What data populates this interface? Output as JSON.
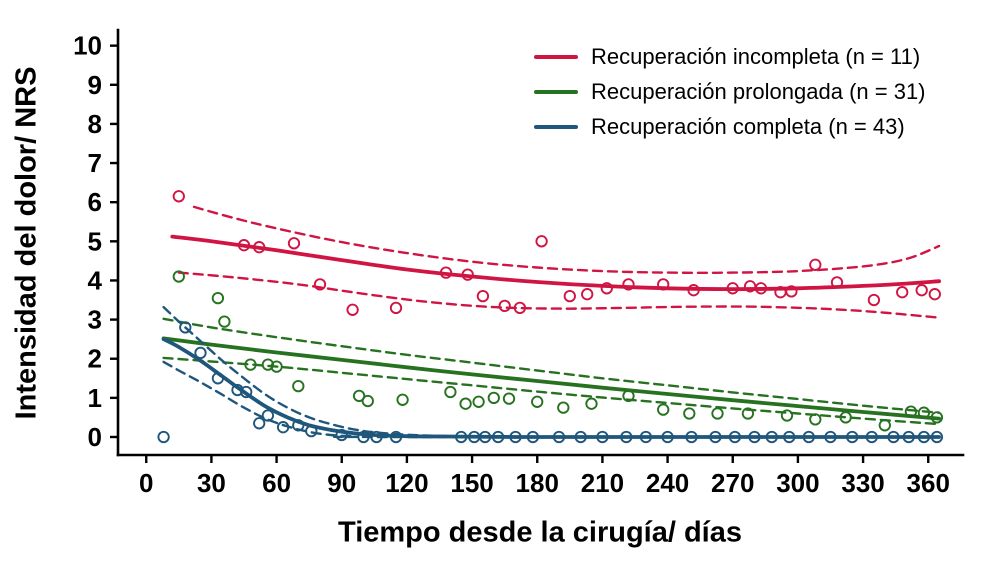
{
  "chart_data": {
    "type": "scatter",
    "title": "",
    "xlabel": "Tiempo desde la cirugía/ días",
    "ylabel": "Intensidad del dolor/ NRS",
    "xlim": [
      -13,
      376
    ],
    "ylim": [
      -0.46,
      10.4
    ],
    "xticks": [
      0,
      30,
      60,
      90,
      120,
      150,
      180,
      210,
      240,
      270,
      300,
      330,
      360
    ],
    "yticks": [
      0,
      1,
      2,
      3,
      4,
      5,
      6,
      7,
      8,
      9,
      10
    ],
    "grid": false,
    "legend": {
      "position": "top-right",
      "entries": [
        {
          "label": "Recuperación incompleta (n = 11)",
          "color": "#d01543"
        },
        {
          "label": "Recuperación prolongada (n = 31)",
          "color": "#277221"
        },
        {
          "label": "Recuperación completa (n = 43)",
          "color": "#1f567b"
        }
      ]
    },
    "series": [
      {
        "id": "incompleta-ci-upper",
        "group": "Recuperación incompleta",
        "role": "ci-upper",
        "style": "dashed",
        "color": "#d01543",
        "points": [
          [
            22,
            5.88
          ],
          [
            40,
            5.6
          ],
          [
            60,
            5.33
          ],
          [
            90,
            4.98
          ],
          [
            120,
            4.7
          ],
          [
            150,
            4.48
          ],
          [
            180,
            4.33
          ],
          [
            210,
            4.24
          ],
          [
            240,
            4.2
          ],
          [
            270,
            4.2
          ],
          [
            300,
            4.24
          ],
          [
            330,
            4.36
          ],
          [
            350,
            4.55
          ],
          [
            365,
            4.88
          ]
        ]
      },
      {
        "id": "incompleta-ci-lower",
        "group": "Recuperación incompleta",
        "role": "ci-lower",
        "style": "dashed",
        "color": "#d01543",
        "points": [
          [
            15,
            4.2
          ],
          [
            40,
            4.08
          ],
          [
            70,
            3.9
          ],
          [
            100,
            3.66
          ],
          [
            130,
            3.45
          ],
          [
            160,
            3.32
          ],
          [
            190,
            3.28
          ],
          [
            220,
            3.3
          ],
          [
            250,
            3.33
          ],
          [
            280,
            3.33
          ],
          [
            310,
            3.28
          ],
          [
            335,
            3.2
          ],
          [
            365,
            3.05
          ]
        ]
      },
      {
        "id": "incompleta-fit",
        "group": "Recuperación incompleta",
        "role": "fit",
        "style": "line",
        "color": "#d01543",
        "points": [
          [
            12,
            5.12
          ],
          [
            30,
            5.0
          ],
          [
            60,
            4.77
          ],
          [
            90,
            4.52
          ],
          [
            120,
            4.28
          ],
          [
            150,
            4.1
          ],
          [
            180,
            3.96
          ],
          [
            210,
            3.86
          ],
          [
            240,
            3.8
          ],
          [
            270,
            3.78
          ],
          [
            300,
            3.8
          ],
          [
            330,
            3.86
          ],
          [
            350,
            3.92
          ],
          [
            365,
            3.98
          ]
        ]
      },
      {
        "id": "prolongada-ci-upper",
        "group": "Recuperación prolongada",
        "role": "ci-upper",
        "style": "dashed",
        "color": "#277221",
        "points": [
          [
            8,
            3.02
          ],
          [
            30,
            2.8
          ],
          [
            60,
            2.55
          ],
          [
            90,
            2.32
          ],
          [
            120,
            2.1
          ],
          [
            150,
            1.9
          ],
          [
            180,
            1.7
          ],
          [
            210,
            1.5
          ],
          [
            240,
            1.32
          ],
          [
            270,
            1.14
          ],
          [
            300,
            0.97
          ],
          [
            330,
            0.8
          ],
          [
            365,
            0.62
          ]
        ]
      },
      {
        "id": "prolongada-ci-lower",
        "group": "Recuperación prolongada",
        "role": "ci-lower",
        "style": "dashed",
        "color": "#277221",
        "points": [
          [
            8,
            2.02
          ],
          [
            30,
            1.93
          ],
          [
            60,
            1.8
          ],
          [
            90,
            1.64
          ],
          [
            120,
            1.48
          ],
          [
            150,
            1.32
          ],
          [
            180,
            1.16
          ],
          [
            210,
            1.01
          ],
          [
            240,
            0.87
          ],
          [
            270,
            0.73
          ],
          [
            300,
            0.6
          ],
          [
            330,
            0.47
          ],
          [
            365,
            0.33
          ]
        ]
      },
      {
        "id": "prolongada-fit",
        "group": "Recuperación prolongada",
        "role": "fit",
        "style": "line",
        "color": "#277221",
        "points": [
          [
            8,
            2.52
          ],
          [
            30,
            2.36
          ],
          [
            60,
            2.16
          ],
          [
            90,
            1.97
          ],
          [
            120,
            1.78
          ],
          [
            150,
            1.6
          ],
          [
            180,
            1.43
          ],
          [
            210,
            1.26
          ],
          [
            240,
            1.1
          ],
          [
            270,
            0.94
          ],
          [
            300,
            0.79
          ],
          [
            330,
            0.64
          ],
          [
            365,
            0.47
          ]
        ]
      },
      {
        "id": "completa-ci-upper",
        "group": "Recuperación completa",
        "role": "ci-upper",
        "style": "dashed",
        "color": "#1f567b",
        "points": [
          [
            8,
            3.32
          ],
          [
            15,
            2.95
          ],
          [
            25,
            2.45
          ],
          [
            35,
            1.95
          ],
          [
            45,
            1.5
          ],
          [
            55,
            1.08
          ],
          [
            65,
            0.75
          ],
          [
            75,
            0.5
          ],
          [
            85,
            0.33
          ],
          [
            95,
            0.2
          ],
          [
            105,
            0.12
          ],
          [
            120,
            0.06
          ],
          [
            140,
            0.02
          ],
          [
            170,
            0.01
          ],
          [
            200,
            0
          ],
          [
            365,
            0
          ]
        ]
      },
      {
        "id": "completa-ci-lower",
        "group": "Recuperación completa",
        "role": "ci-lower",
        "style": "dashed",
        "color": "#1f567b",
        "points": [
          [
            8,
            1.92
          ],
          [
            15,
            1.7
          ],
          [
            25,
            1.4
          ],
          [
            35,
            1.08
          ],
          [
            45,
            0.75
          ],
          [
            55,
            0.47
          ],
          [
            65,
            0.27
          ],
          [
            75,
            0.13
          ],
          [
            85,
            0.05
          ],
          [
            95,
            0.02
          ],
          [
            110,
            0
          ],
          [
            365,
            0
          ]
        ]
      },
      {
        "id": "completa-fit",
        "group": "Recuperación completa",
        "role": "fit",
        "style": "line",
        "color": "#1f567b",
        "points": [
          [
            8,
            2.5
          ],
          [
            15,
            2.3
          ],
          [
            25,
            1.95
          ],
          [
            35,
            1.55
          ],
          [
            45,
            1.15
          ],
          [
            55,
            0.78
          ],
          [
            65,
            0.5
          ],
          [
            75,
            0.3
          ],
          [
            85,
            0.18
          ],
          [
            95,
            0.1
          ],
          [
            105,
            0.05
          ],
          [
            120,
            0.02
          ],
          [
            145,
            0.01
          ],
          [
            170,
            0
          ],
          [
            220,
            0
          ],
          [
            280,
            0
          ],
          [
            365,
            0
          ]
        ]
      },
      {
        "id": "incompleta-points",
        "group": "Recuperación incompleta",
        "role": "observations",
        "style": "scatter",
        "color": "#d01543",
        "points": [
          [
            15,
            6.15
          ],
          [
            45,
            4.9
          ],
          [
            52,
            4.85
          ],
          [
            68,
            4.95
          ],
          [
            80,
            3.9
          ],
          [
            95,
            3.25
          ],
          [
            115,
            3.3
          ],
          [
            138,
            4.2
          ],
          [
            148,
            4.15
          ],
          [
            155,
            3.6
          ],
          [
            165,
            3.35
          ],
          [
            172,
            3.3
          ],
          [
            182,
            5.0
          ],
          [
            195,
            3.6
          ],
          [
            203,
            3.65
          ],
          [
            212,
            3.8
          ],
          [
            222,
            3.9
          ],
          [
            238,
            3.9
          ],
          [
            252,
            3.75
          ],
          [
            270,
            3.8
          ],
          [
            278,
            3.85
          ],
          [
            283,
            3.8
          ],
          [
            292,
            3.7
          ],
          [
            297,
            3.72
          ],
          [
            308,
            4.4
          ],
          [
            318,
            3.95
          ],
          [
            335,
            3.5
          ],
          [
            348,
            3.7
          ],
          [
            357,
            3.75
          ],
          [
            363,
            3.65
          ]
        ]
      },
      {
        "id": "prolongada-points",
        "group": "Recuperación prolongada",
        "role": "observations",
        "style": "scatter",
        "color": "#277221",
        "points": [
          [
            15,
            4.1
          ],
          [
            33,
            3.55
          ],
          [
            36,
            2.95
          ],
          [
            48,
            1.85
          ],
          [
            56,
            1.85
          ],
          [
            60,
            1.8
          ],
          [
            70,
            1.3
          ],
          [
            98,
            1.05
          ],
          [
            102,
            0.92
          ],
          [
            118,
            0.95
          ],
          [
            140,
            1.15
          ],
          [
            147,
            0.85
          ],
          [
            153,
            0.9
          ],
          [
            160,
            1.0
          ],
          [
            167,
            0.98
          ],
          [
            180,
            0.9
          ],
          [
            192,
            0.75
          ],
          [
            205,
            0.85
          ],
          [
            222,
            1.05
          ],
          [
            238,
            0.7
          ],
          [
            250,
            0.6
          ],
          [
            263,
            0.6
          ],
          [
            277,
            0.6
          ],
          [
            295,
            0.55
          ],
          [
            308,
            0.45
          ],
          [
            322,
            0.5
          ],
          [
            340,
            0.3
          ],
          [
            352,
            0.65
          ],
          [
            358,
            0.62
          ],
          [
            364,
            0.5
          ]
        ]
      },
      {
        "id": "completa-points",
        "group": "Recuperación completa",
        "role": "observations",
        "style": "scatter",
        "color": "#1f567b",
        "points": [
          [
            8,
            0
          ],
          [
            18,
            2.8
          ],
          [
            25,
            2.15
          ],
          [
            33,
            1.5
          ],
          [
            42,
            1.2
          ],
          [
            46,
            1.15
          ],
          [
            52,
            0.35
          ],
          [
            56,
            0.55
          ],
          [
            63,
            0.25
          ],
          [
            70,
            0.3
          ],
          [
            76,
            0.15
          ],
          [
            90,
            0.05
          ],
          [
            100,
            0
          ],
          [
            106,
            0
          ],
          [
            115,
            0
          ],
          [
            145,
            0
          ],
          [
            151,
            0
          ],
          [
            156,
            0
          ],
          [
            162,
            0
          ],
          [
            170,
            0
          ],
          [
            178,
            0
          ],
          [
            190,
            0
          ],
          [
            200,
            0
          ],
          [
            210,
            0
          ],
          [
            221,
            0
          ],
          [
            230,
            0
          ],
          [
            240,
            0
          ],
          [
            251,
            0
          ],
          [
            262,
            0
          ],
          [
            271,
            0
          ],
          [
            280,
            0
          ],
          [
            288,
            0
          ],
          [
            296,
            0
          ],
          [
            305,
            0
          ],
          [
            315,
            0
          ],
          [
            325,
            0
          ],
          [
            334,
            0
          ],
          [
            344,
            0
          ],
          [
            351,
            0
          ],
          [
            358,
            0
          ],
          [
            364,
            0
          ]
        ]
      }
    ]
  }
}
